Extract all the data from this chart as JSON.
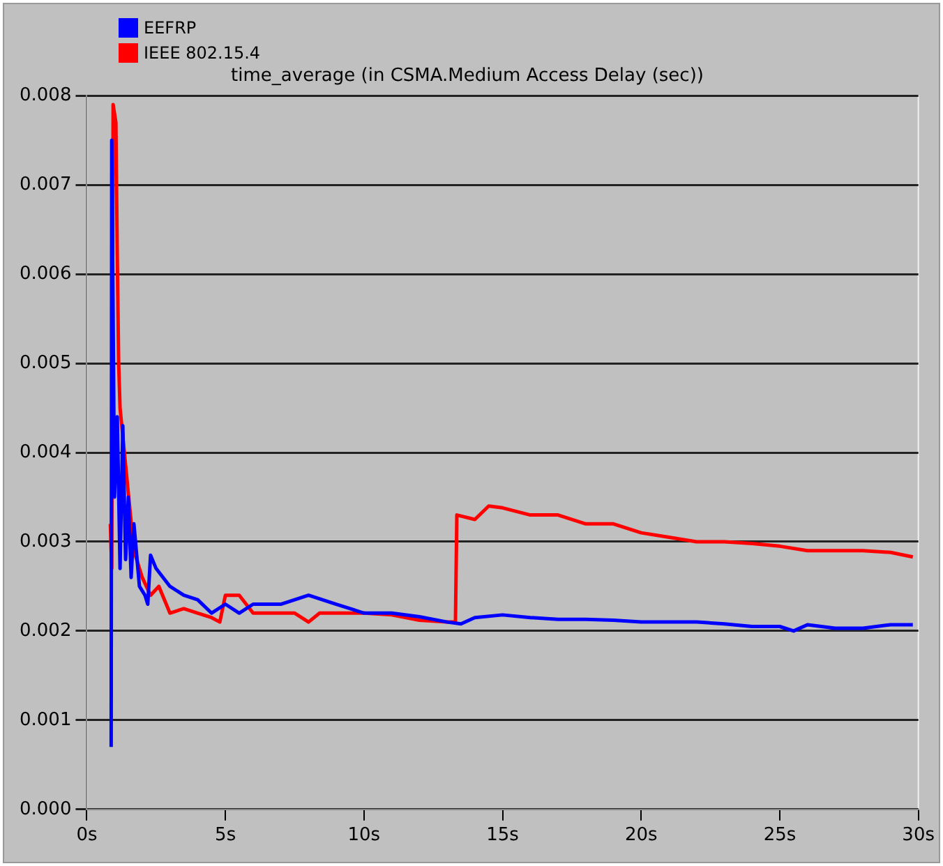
{
  "chart_data": {
    "type": "line",
    "title": "time_average (in CSMA.Medium Access Delay (sec))",
    "legend": "top left",
    "grid": "y",
    "marker": "none",
    "line_style": "solid",
    "xlim": [
      0,
      30
    ],
    "xticks": [
      {
        "value": 0,
        "label": "0s"
      },
      {
        "value": 5,
        "label": "5s"
      },
      {
        "value": 10,
        "label": "10s"
      },
      {
        "value": 15,
        "label": "15s"
      },
      {
        "value": 20,
        "label": "20s"
      },
      {
        "value": 25,
        "label": "25s"
      },
      {
        "value": 30,
        "label": "30s"
      }
    ],
    "ylim": [
      0,
      0.008
    ],
    "yticks": [
      {
        "value": 0,
        "label": "0.000"
      },
      {
        "value": 0.001,
        "label": "0.001"
      },
      {
        "value": 0.002,
        "label": "0.002"
      },
      {
        "value": 0.003,
        "label": "0.003"
      },
      {
        "value": 0.004,
        "label": "0.004"
      },
      {
        "value": 0.005,
        "label": "0.005"
      },
      {
        "value": 0.006,
        "label": "0.006"
      },
      {
        "value": 0.007,
        "label": "0.007"
      },
      {
        "value": 0.008,
        "label": "0.008"
      }
    ],
    "series": [
      {
        "name": "EEFRP",
        "color": "#0000ff",
        "x": [
          0.88,
          0.9,
          1.0,
          1.1,
          1.2,
          1.3,
          1.4,
          1.5,
          1.6,
          1.7,
          1.9,
          2.1,
          2.2,
          2.3,
          2.5,
          3.0,
          3.5,
          4.0,
          4.5,
          5.0,
          5.5,
          6.0,
          7.0,
          8.0,
          9.0,
          10,
          11,
          12,
          13,
          13.5,
          14,
          15,
          16,
          17,
          18,
          19,
          20,
          21,
          22,
          23,
          24,
          25,
          25.5,
          26,
          27,
          28,
          29,
          29.8
        ],
        "values": [
          0.0007,
          0.0075,
          0.0035,
          0.0044,
          0.0027,
          0.0043,
          0.0028,
          0.0035,
          0.0026,
          0.0032,
          0.0025,
          0.0024,
          0.0023,
          0.00285,
          0.0027,
          0.0025,
          0.0024,
          0.00235,
          0.0022,
          0.0023,
          0.0022,
          0.0023,
          0.0023,
          0.0024,
          0.0023,
          0.0022,
          0.0022,
          0.00216,
          0.0021,
          0.00208,
          0.00215,
          0.00218,
          0.00215,
          0.00213,
          0.00213,
          0.00212,
          0.0021,
          0.0021,
          0.0021,
          0.00208,
          0.00205,
          0.00205,
          0.002,
          0.00207,
          0.00203,
          0.00203,
          0.00207,
          0.00207
        ]
      },
      {
        "name": "IEEE 802.15.4",
        "color": "#ff0000",
        "x": [
          0.85,
          0.9,
          0.95,
          1.05,
          1.1,
          1.15,
          1.2,
          1.7,
          2.0,
          2.3,
          2.6,
          3.0,
          3.5,
          4.0,
          4.5,
          4.8,
          5.0,
          5.5,
          6.0,
          7,
          7.5,
          8.0,
          8.4,
          9,
          10,
          11,
          12,
          13,
          13.3,
          13.35,
          14,
          14.5,
          15,
          16,
          17,
          18,
          19,
          20,
          21,
          22,
          23,
          24,
          25,
          26,
          27,
          28,
          29,
          29.8
        ],
        "values": [
          0.0032,
          0.0027,
          0.0079,
          0.0077,
          0.0062,
          0.005,
          0.0045,
          0.0029,
          0.0026,
          0.0024,
          0.0025,
          0.0022,
          0.00225,
          0.0022,
          0.00215,
          0.0021,
          0.0024,
          0.0024,
          0.0022,
          0.0022,
          0.0022,
          0.0021,
          0.0022,
          0.0022,
          0.0022,
          0.00218,
          0.00212,
          0.0021,
          0.0021,
          0.0033,
          0.00325,
          0.0034,
          0.00338,
          0.0033,
          0.0033,
          0.0032,
          0.0032,
          0.0031,
          0.00305,
          0.003,
          0.003,
          0.00298,
          0.00295,
          0.0029,
          0.0029,
          0.0029,
          0.00288,
          0.00283
        ]
      }
    ]
  }
}
